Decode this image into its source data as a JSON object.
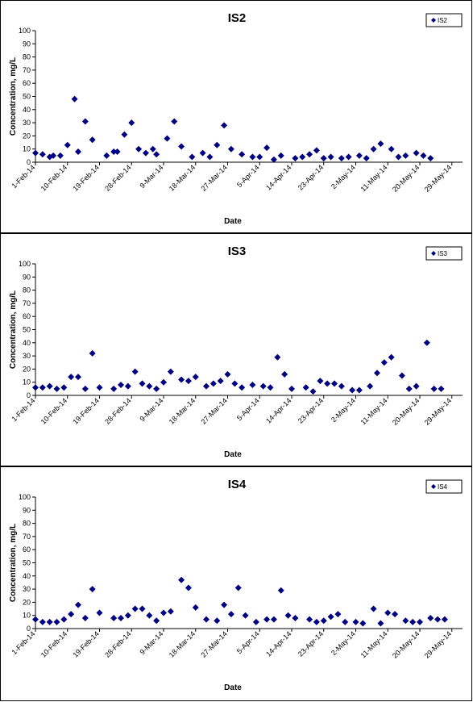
{
  "chart_data": [
    {
      "type": "scatter",
      "title": "IS2",
      "xlabel": "Date",
      "ylabel": "Concentration, mg/L",
      "ylim": [
        0,
        100
      ],
      "yticks": [
        0,
        10,
        20,
        30,
        40,
        50,
        60,
        70,
        80,
        90,
        100
      ],
      "xlim": [
        "2014-02-01",
        "2014-06-01"
      ],
      "xticks": [
        "1-Feb-14",
        "10-Feb-14",
        "19-Feb-14",
        "28-Feb-14",
        "9-Mar-14",
        "18-Mar-14",
        "27-Mar-14",
        "5-Apr-14",
        "14-Apr-14",
        "23-Apr-14",
        "2-May-14",
        "11-May-14",
        "20-May-14",
        "29-May-14"
      ],
      "legend": "top-right",
      "grid": false,
      "marker_color": "#000080",
      "series": [
        {
          "name": "IS2",
          "points": [
            [
              "2014-02-01",
              7
            ],
            [
              "2014-02-03",
              6
            ],
            [
              "2014-02-05",
              4
            ],
            [
              "2014-02-06",
              5
            ],
            [
              "2014-02-08",
              5
            ],
            [
              "2014-02-10",
              13
            ],
            [
              "2014-02-12",
              48
            ],
            [
              "2014-02-13",
              8
            ],
            [
              "2014-02-15",
              31
            ],
            [
              "2014-02-17",
              17
            ],
            [
              "2014-02-21",
              5
            ],
            [
              "2014-02-23",
              8
            ],
            [
              "2014-02-24",
              8
            ],
            [
              "2014-02-26",
              21
            ],
            [
              "2014-02-28",
              30
            ],
            [
              "2014-03-02",
              10
            ],
            [
              "2014-03-04",
              7
            ],
            [
              "2014-03-06",
              10
            ],
            [
              "2014-03-07",
              6
            ],
            [
              "2014-03-10",
              18
            ],
            [
              "2014-03-12",
              31
            ],
            [
              "2014-03-14",
              12
            ],
            [
              "2014-03-17",
              4
            ],
            [
              "2014-03-20",
              7
            ],
            [
              "2014-03-22",
              4
            ],
            [
              "2014-03-24",
              13
            ],
            [
              "2014-03-26",
              28
            ],
            [
              "2014-03-28",
              10
            ],
            [
              "2014-03-31",
              6
            ],
            [
              "2014-04-03",
              4
            ],
            [
              "2014-04-05",
              4
            ],
            [
              "2014-04-07",
              11
            ],
            [
              "2014-04-09",
              2
            ],
            [
              "2014-04-11",
              5
            ],
            [
              "2014-04-15",
              3
            ],
            [
              "2014-04-17",
              4
            ],
            [
              "2014-04-19",
              6
            ],
            [
              "2014-04-21",
              9
            ],
            [
              "2014-04-23",
              3
            ],
            [
              "2014-04-25",
              4
            ],
            [
              "2014-04-28",
              3
            ],
            [
              "2014-04-30",
              4
            ],
            [
              "2014-05-03",
              5
            ],
            [
              "2014-05-05",
              3
            ],
            [
              "2014-05-07",
              10
            ],
            [
              "2014-05-09",
              14
            ],
            [
              "2014-05-12",
              10
            ],
            [
              "2014-05-14",
              4
            ],
            [
              "2014-05-16",
              5
            ],
            [
              "2014-05-19",
              7
            ],
            [
              "2014-05-21",
              5
            ],
            [
              "2014-05-23",
              3
            ]
          ]
        }
      ]
    },
    {
      "type": "scatter",
      "title": "IS3",
      "xlabel": "Date",
      "ylabel": "Concentration, mg/L",
      "ylim": [
        0,
        100
      ],
      "yticks": [
        0,
        10,
        20,
        30,
        40,
        50,
        60,
        70,
        80,
        90,
        100
      ],
      "xlim": [
        "2014-02-01",
        "2014-06-01"
      ],
      "xticks": [
        "1-Feb-14",
        "10-Feb-14",
        "19-Feb-14",
        "28-Feb-14",
        "9-Mar-14",
        "18-Mar-14",
        "27-Mar-14",
        "5-Apr-14",
        "14-Apr-14",
        "23-Apr-14",
        "2-May-14",
        "11-May-14",
        "20-May-14",
        "29-May-14"
      ],
      "legend": "top-right",
      "grid": false,
      "marker_color": "#000080",
      "series": [
        {
          "name": "IS3",
          "points": [
            [
              "2014-02-01",
              6
            ],
            [
              "2014-02-03",
              6
            ],
            [
              "2014-02-05",
              7
            ],
            [
              "2014-02-07",
              5
            ],
            [
              "2014-02-09",
              6
            ],
            [
              "2014-02-11",
              14
            ],
            [
              "2014-02-13",
              14
            ],
            [
              "2014-02-15",
              5
            ],
            [
              "2014-02-17",
              32
            ],
            [
              "2014-02-19",
              6
            ],
            [
              "2014-02-23",
              5
            ],
            [
              "2014-02-25",
              8
            ],
            [
              "2014-02-27",
              7
            ],
            [
              "2014-03-01",
              18
            ],
            [
              "2014-03-03",
              9
            ],
            [
              "2014-03-05",
              7
            ],
            [
              "2014-03-07",
              5
            ],
            [
              "2014-03-09",
              10
            ],
            [
              "2014-03-11",
              18
            ],
            [
              "2014-03-14",
              12
            ],
            [
              "2014-03-16",
              11
            ],
            [
              "2014-03-18",
              14
            ],
            [
              "2014-03-21",
              7
            ],
            [
              "2014-03-23",
              9
            ],
            [
              "2014-03-25",
              11
            ],
            [
              "2014-03-27",
              16
            ],
            [
              "2014-03-29",
              9
            ],
            [
              "2014-03-31",
              6
            ],
            [
              "2014-04-03",
              8
            ],
            [
              "2014-04-06",
              7
            ],
            [
              "2014-04-08",
              6
            ],
            [
              "2014-04-10",
              29
            ],
            [
              "2014-04-12",
              16
            ],
            [
              "2014-04-14",
              5
            ],
            [
              "2014-04-18",
              6
            ],
            [
              "2014-04-20",
              3
            ],
            [
              "2014-04-22",
              11
            ],
            [
              "2014-04-24",
              9
            ],
            [
              "2014-04-26",
              9
            ],
            [
              "2014-04-28",
              7
            ],
            [
              "2014-05-01",
              4
            ],
            [
              "2014-05-03",
              4
            ],
            [
              "2014-05-06",
              7
            ],
            [
              "2014-05-08",
              17
            ],
            [
              "2014-05-10",
              25
            ],
            [
              "2014-05-12",
              29
            ],
            [
              "2014-05-15",
              15
            ],
            [
              "2014-05-17",
              5
            ],
            [
              "2014-05-19",
              7
            ],
            [
              "2014-05-22",
              40
            ],
            [
              "2014-05-24",
              5
            ],
            [
              "2014-05-26",
              5
            ]
          ]
        }
      ]
    },
    {
      "type": "scatter",
      "title": "IS4",
      "xlabel": "Date",
      "ylabel": "Concentration, mg/L",
      "ylim": [
        0,
        100
      ],
      "yticks": [
        0,
        10,
        20,
        30,
        40,
        50,
        60,
        70,
        80,
        90,
        100
      ],
      "xlim": [
        "2014-02-01",
        "2014-06-01"
      ],
      "xticks": [
        "1-Feb-14",
        "10-Feb-14",
        "19-Feb-14",
        "28-Feb-14",
        "9-Mar-14",
        "18-Mar-14",
        "27-Mar-14",
        "5-Apr-14",
        "14-Apr-14",
        "23-Apr-14",
        "2-May-14",
        "11-May-14",
        "20-May-14",
        "29-May-14"
      ],
      "legend": "top-right",
      "grid": false,
      "marker_color": "#000080",
      "series": [
        {
          "name": "IS4",
          "points": [
            [
              "2014-02-01",
              7
            ],
            [
              "2014-02-03",
              5
            ],
            [
              "2014-02-05",
              5
            ],
            [
              "2014-02-07",
              5
            ],
            [
              "2014-02-09",
              7
            ],
            [
              "2014-02-11",
              11
            ],
            [
              "2014-02-13",
              18
            ],
            [
              "2014-02-15",
              8
            ],
            [
              "2014-02-17",
              30
            ],
            [
              "2014-02-19",
              12
            ],
            [
              "2014-02-23",
              8
            ],
            [
              "2014-02-25",
              8
            ],
            [
              "2014-02-27",
              10
            ],
            [
              "2014-03-01",
              15
            ],
            [
              "2014-03-03",
              15
            ],
            [
              "2014-03-05",
              10
            ],
            [
              "2014-03-07",
              6
            ],
            [
              "2014-03-09",
              12
            ],
            [
              "2014-03-11",
              13
            ],
            [
              "2014-03-14",
              37
            ],
            [
              "2014-03-16",
              31
            ],
            [
              "2014-03-18",
              16
            ],
            [
              "2014-03-21",
              7
            ],
            [
              "2014-03-24",
              6
            ],
            [
              "2014-03-26",
              18
            ],
            [
              "2014-03-28",
              11
            ],
            [
              "2014-03-30",
              31
            ],
            [
              "2014-04-01",
              10
            ],
            [
              "2014-04-04",
              5
            ],
            [
              "2014-04-07",
              7
            ],
            [
              "2014-04-09",
              7
            ],
            [
              "2014-04-11",
              29
            ],
            [
              "2014-04-13",
              10
            ],
            [
              "2014-04-15",
              8
            ],
            [
              "2014-04-19",
              7
            ],
            [
              "2014-04-21",
              5
            ],
            [
              "2014-04-23",
              6
            ],
            [
              "2014-04-25",
              9
            ],
            [
              "2014-04-27",
              11
            ],
            [
              "2014-04-29",
              5
            ],
            [
              "2014-05-02",
              5
            ],
            [
              "2014-05-04",
              4
            ],
            [
              "2014-05-07",
              15
            ],
            [
              "2014-05-09",
              4
            ],
            [
              "2014-05-11",
              12
            ],
            [
              "2014-05-13",
              11
            ],
            [
              "2014-05-16",
              6
            ],
            [
              "2014-05-18",
              5
            ],
            [
              "2014-05-20",
              5
            ],
            [
              "2014-05-23",
              8
            ],
            [
              "2014-05-25",
              7
            ],
            [
              "2014-05-27",
              7
            ]
          ]
        }
      ]
    }
  ]
}
